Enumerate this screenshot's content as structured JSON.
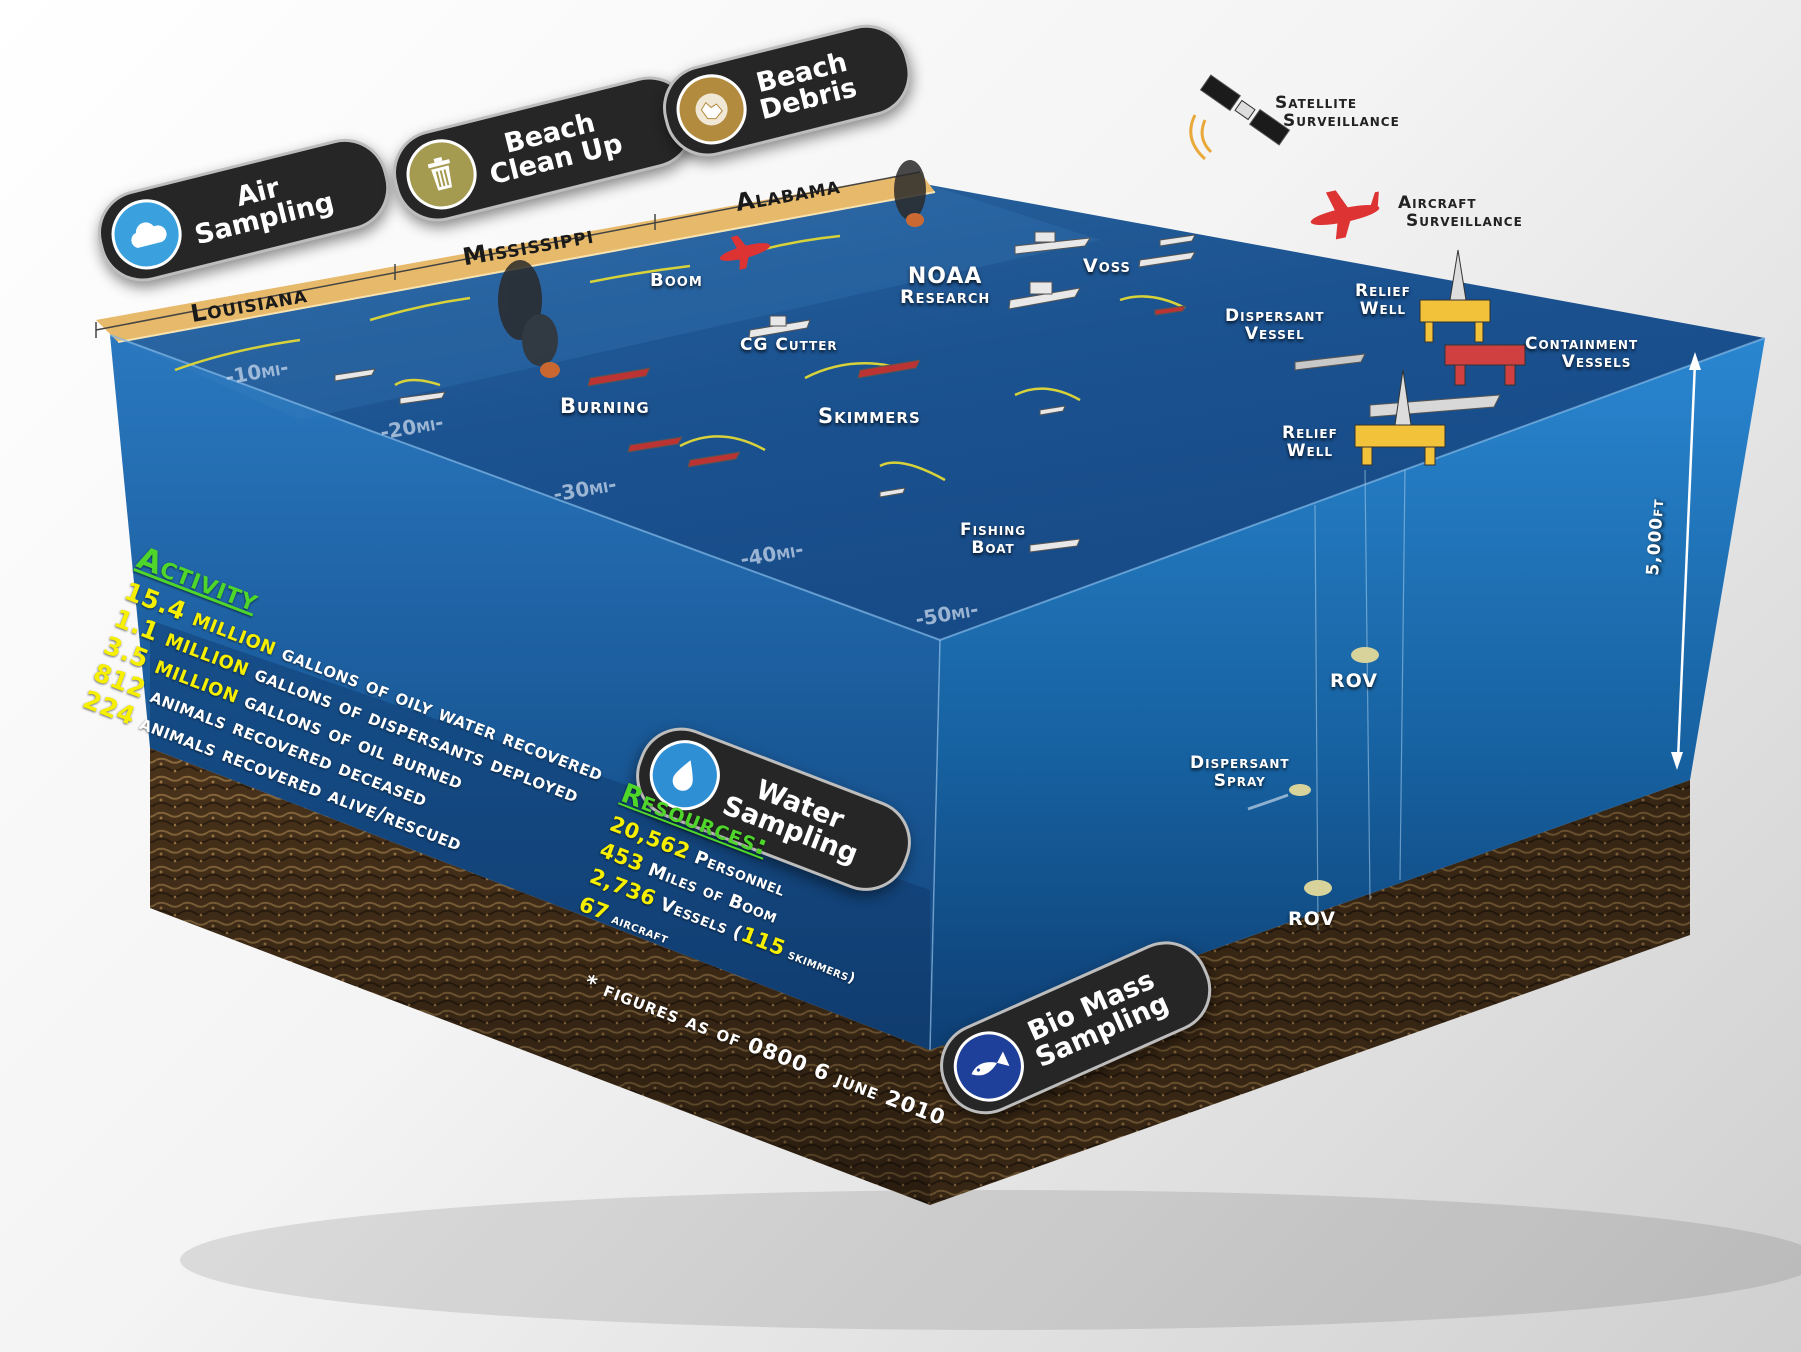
{
  "pills": {
    "air": {
      "line1": "Air",
      "line2": "Sampling",
      "icon": "cloud-icon"
    },
    "cleanup": {
      "line1": "Beach",
      "line2": "Clean Up",
      "icon": "trash-can-icon"
    },
    "debris": {
      "line1": "Beach",
      "line2": "Debris",
      "icon": "debris-icon"
    },
    "water": {
      "line1": "Water",
      "line2": "Sampling",
      "icon": "water-drop-icon"
    },
    "biomass": {
      "line1": "Bio Mass",
      "line2": "Sampling",
      "icon": "fish-icon"
    }
  },
  "states": {
    "louisiana": "Louisiana",
    "mississippi": "Mississippi",
    "alabama": "Alabama"
  },
  "surface_labels": {
    "satellite": {
      "line1": "Satellite",
      "line2": "Surveillance"
    },
    "aircraft": {
      "line1": "Aircraft",
      "line2": "Surveillance"
    },
    "boom": "Boom",
    "noaa": {
      "line1": "NOAA",
      "line2": "Research"
    },
    "voss": "Voss",
    "cg_cutter": "CG Cutter",
    "dispersant_vessel": {
      "line1": "Dispersant",
      "line2": "Vessel"
    },
    "relief_well_top": {
      "line1": "Relief",
      "line2": "Well"
    },
    "containment": {
      "line1": "Containment",
      "line2": "Vessels"
    },
    "relief_well_bottom": {
      "line1": "Relief",
      "line2": "Well"
    },
    "burning": "Burning",
    "skimmers": "Skimmers",
    "fishing_boat": {
      "line1": "Fishing",
      "line2": "Boat"
    }
  },
  "mile_markers": [
    "-10mi-",
    "-20mi-",
    "-30mi-",
    "-40mi-",
    "-50mi-"
  ],
  "depth": {
    "label": "5,000ft"
  },
  "subsea_labels": {
    "rov_top": "ROV",
    "dispersant_spray": {
      "line1": "Dispersant",
      "line2": "Spray"
    },
    "rov_bottom": "ROV"
  },
  "activity": {
    "title": "Activity",
    "rows": [
      {
        "num": "15.4 million",
        "text": " gallons of oily water recovered"
      },
      {
        "num": "1.1 million",
        "text": " gallons of dispersants deployed"
      },
      {
        "num": "3.5 million",
        "text": " gallons of oil burned"
      },
      {
        "num": "812",
        "text": " animals recovered deceased"
      },
      {
        "num": "224",
        "text": " animals recovered alive/rescued"
      }
    ]
  },
  "resources": {
    "title": "Resources:",
    "rows": [
      {
        "num": "20,562",
        "text": " Personnel",
        "num2": "",
        "text2": ""
      },
      {
        "num": "453",
        "text": " Miles of Boom",
        "num2": "",
        "text2": ""
      },
      {
        "num": "2,736",
        "text": " Vessels (",
        "num2": "115",
        "text2": " skimmers)"
      },
      {
        "num": "67",
        "text": " aircraft",
        "num2": "",
        "text2": ""
      }
    ]
  },
  "footnote": "* figures as of 0800 6 june 2010",
  "colors": {
    "ocean_surface": "#1f5a95",
    "water_front": "#1d5f9c",
    "water_side": "#0f4f8f",
    "seabed": "#5a3f22",
    "beach": "#e7b96a",
    "activity_heading": "#4fd62a",
    "stat_number": "#f6f000"
  }
}
